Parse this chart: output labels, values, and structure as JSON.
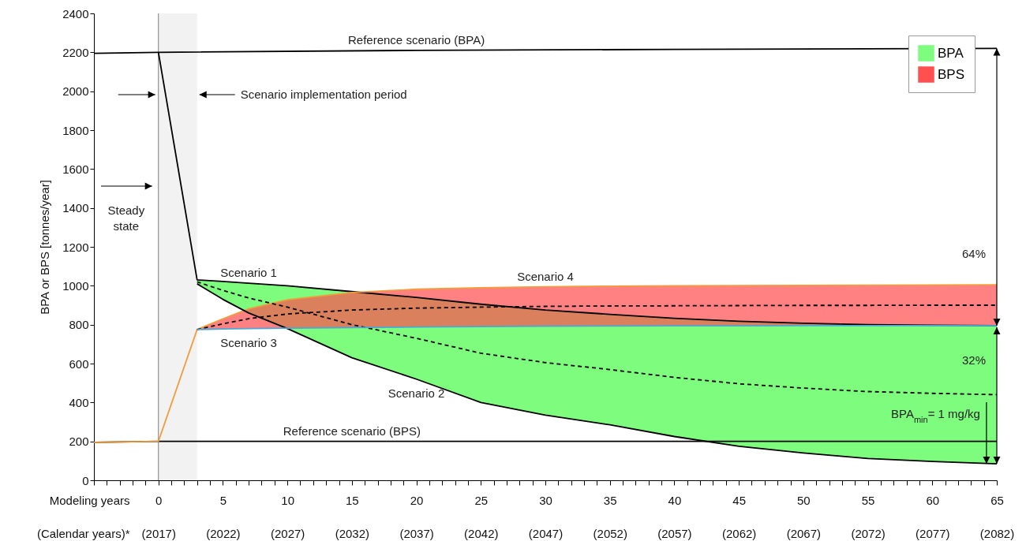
{
  "chart_data": {
    "type": "line",
    "ylabel": "BPA or BPS [tonnes/year]",
    "xlabel": "Modeling years",
    "x2label": "(Calendar years)*",
    "xlim": [
      -5,
      65
    ],
    "ylim": [
      0,
      2400
    ],
    "yticks": [
      0,
      200,
      400,
      600,
      800,
      1000,
      1200,
      1400,
      1600,
      1800,
      2000,
      2200,
      2400
    ],
    "xticks": [
      {
        "value": -5,
        "label": null
      },
      {
        "value": -4,
        "label": null
      },
      {
        "value": -3,
        "label": null
      },
      {
        "value": -2,
        "label": null
      },
      {
        "value": -1,
        "label": null
      },
      0,
      {
        "value": 1,
        "label": null
      },
      {
        "value": 2,
        "label": null
      },
      {
        "value": 3,
        "label": null
      },
      {
        "value": 4,
        "label": null
      },
      5,
      {
        "value": 6,
        "label": null
      },
      {
        "value": 7,
        "label": null
      },
      {
        "value": 8,
        "label": null
      },
      {
        "value": 9,
        "label": null
      },
      10,
      {
        "value": 11,
        "label": null
      },
      {
        "value": 12,
        "label": null
      },
      {
        "value": 13,
        "label": null
      },
      {
        "value": 14,
        "label": null
      },
      15,
      {
        "value": 16,
        "label": null
      },
      {
        "value": 17,
        "label": null
      },
      {
        "value": 18,
        "label": null
      },
      {
        "value": 19,
        "label": null
      },
      20,
      {
        "value": 21,
        "label": null
      },
      {
        "value": 22,
        "label": null
      },
      {
        "value": 23,
        "label": null
      },
      {
        "value": 24,
        "label": null
      },
      25,
      {
        "value": 26,
        "label": null
      },
      {
        "value": 27,
        "label": null
      },
      {
        "value": 28,
        "label": null
      },
      {
        "value": 29,
        "label": null
      },
      30,
      {
        "value": 31,
        "label": null
      },
      {
        "value": 32,
        "label": null
      },
      {
        "value": 33,
        "label": null
      },
      {
        "value": 34,
        "label": null
      },
      35,
      {
        "value": 36,
        "label": null
      },
      {
        "value": 37,
        "label": null
      },
      {
        "value": 38,
        "label": null
      },
      {
        "value": 39,
        "label": null
      },
      40,
      {
        "value": 41,
        "label": null
      },
      {
        "value": 42,
        "label": null
      },
      {
        "value": 43,
        "label": null
      },
      {
        "value": 44,
        "label": null
      },
      45,
      {
        "value": 46,
        "label": null
      },
      {
        "value": 47,
        "label": null
      },
      {
        "value": 48,
        "label": null
      },
      {
        "value": 49,
        "label": null
      },
      50,
      {
        "value": 51,
        "label": null
      },
      {
        "value": 52,
        "label": null
      },
      {
        "value": 53,
        "label": null
      },
      {
        "value": 54,
        "label": null
      },
      55,
      {
        "value": 56,
        "label": null
      },
      {
        "value": 57,
        "label": null
      },
      {
        "value": 58,
        "label": null
      },
      {
        "value": 59,
        "label": null
      },
      60,
      {
        "value": 61,
        "label": null
      },
      {
        "value": 62,
        "label": null
      },
      {
        "value": 63,
        "label": null
      },
      {
        "value": 64,
        "label": null
      },
      65
    ],
    "x2lim": [
      2012,
      2082
    ],
    "x2ticks": [
      {
        "value": 2017,
        "label": "(2017)"
      },
      {
        "value": 2022,
        "label": "(2022)"
      },
      {
        "value": 2027,
        "label": "(2027)"
      },
      {
        "value": 2032,
        "label": "(2032)"
      },
      {
        "value": 2037,
        "label": "(2037)"
      },
      {
        "value": 2042,
        "label": "(2042)"
      },
      {
        "value": 2047,
        "label": "(2047)"
      },
      {
        "value": 2052,
        "label": "(2052)"
      },
      {
        "value": 2057,
        "label": "(2057)"
      },
      {
        "value": 2062,
        "label": "(2062)"
      },
      {
        "value": 2067,
        "label": "(2067)"
      },
      {
        "value": 2072,
        "label": "(2072)"
      },
      {
        "value": 2077,
        "label": "(2077)"
      },
      {
        "value": 2082,
        "label": "(2082)"
      }
    ],
    "legend": "top right",
    "series": [
      {
        "type": "line",
        "color": "#000000",
        "x": [
          -5,
          0,
          20,
          40,
          65
        ],
        "values": [
          2195,
          2200,
          2210,
          2215,
          2220
        ]
      },
      {
        "type": "line",
        "color": "#000000",
        "x": [
          -5,
          0,
          65
        ],
        "values": [
          195,
          200,
          200
        ]
      },
      {
        "type": "line",
        "color": "#000000",
        "x": [
          0,
          3,
          5,
          7,
          10,
          15,
          20,
          25,
          30,
          35,
          40,
          45,
          50,
          55,
          60,
          65
        ],
        "values": [
          2200,
          1030,
          1022,
          1013,
          1000,
          970,
          940,
          905,
          875,
          853,
          833,
          817,
          807,
          800,
          797,
          795
        ]
      },
      {
        "type": "line",
        "color": "#f39c3c",
        "x": [
          -5,
          0,
          3,
          5,
          7,
          10,
          15,
          20,
          25,
          30,
          35,
          40,
          45,
          50,
          55,
          60,
          65
        ],
        "values": [
          195,
          200,
          775,
          830,
          881,
          928,
          965,
          982,
          990,
          995,
          998,
          1000,
          1001,
          1002,
          1003,
          1004,
          1005
        ]
      },
      {
        "type": "line",
        "color": "#000000",
        "line_style": "dashed",
        "x": [
          3,
          5,
          7,
          10,
          15,
          20,
          25,
          30,
          35,
          40,
          45,
          50,
          55,
          60,
          65
        ],
        "values": [
          1020,
          976,
          937,
          890,
          800,
          730,
          653,
          605,
          569,
          529,
          496,
          474,
          456,
          447,
          440
        ]
      },
      {
        "type": "line",
        "color": "#000000",
        "line_style": "dashed",
        "x": [
          3,
          5,
          7,
          10,
          15,
          20,
          25,
          30,
          35,
          40,
          45,
          50,
          55,
          60,
          65
        ],
        "values": [
          775,
          804,
          831,
          855,
          875,
          885,
          890,
          894,
          896,
          897,
          898,
          899,
          899,
          900,
          900
        ]
      },
      {
        "type": "line",
        "color": "#000000",
        "x": [
          3,
          5,
          7,
          10,
          15,
          20,
          25,
          30,
          35,
          40,
          45,
          50,
          55,
          60,
          65
        ],
        "values": [
          1010,
          930,
          860,
          780,
          630,
          520,
          400,
          335,
          285,
          225,
          175,
          140,
          112,
          97,
          85
        ]
      },
      {
        "name": "BPA",
        "type": "area",
        "color": "#7dfc7d",
        "x": [
          3,
          5,
          7,
          10,
          15,
          20,
          25,
          30,
          35,
          40,
          45,
          50,
          55,
          60,
          65
        ],
        "values": [
          1030,
          1022,
          1013,
          1000,
          970,
          940,
          905,
          875,
          853,
          833,
          817,
          807,
          800,
          797,
          795
        ]
      },
      {
        "type": "line",
        "color": "#4da6d6",
        "x": [
          3,
          5,
          7,
          10,
          15,
          20,
          25,
          30,
          35,
          40,
          45,
          50,
          55,
          60,
          65
        ],
        "values": [
          775,
          778,
          780,
          782,
          785,
          788,
          790,
          792,
          793,
          794,
          794,
          795,
          795,
          795,
          795
        ]
      },
      {
        "name": "BPS",
        "type": "area",
        "color": "#ff5050",
        "x": [
          3,
          5,
          7,
          10,
          15,
          20,
          25,
          30,
          35,
          40,
          45,
          50,
          55,
          60,
          65
        ],
        "values": [
          775,
          830,
          881,
          928,
          965,
          982,
          990,
          995,
          998,
          1000,
          1001,
          1002,
          1003,
          1004,
          1005
        ]
      }
    ],
    "bands": [
      {
        "axis": "x",
        "from": 0,
        "to": 3,
        "label": "Scenario implementation period",
        "color": "#f2f2f2"
      }
    ],
    "ref_lines": [
      {
        "axis": "x",
        "value": 0,
        "color": "#808080"
      }
    ],
    "annotations": [
      {
        "text": "Reference scenario (BPA)",
        "x": 20,
        "y": 2210
      },
      {
        "text": "Reference scenario (BPS)",
        "x": 15,
        "y": 200
      },
      {
        "text": "Scenario 1",
        "x": 7,
        "y": 1013
      },
      {
        "text": "Scenario 2",
        "x": 20,
        "y": 520
      },
      {
        "text": "Scenario 3",
        "x": 7,
        "y": 780
      },
      {
        "text": "Scenario 4",
        "x": 30,
        "y": 995
      },
      {
        "text": "BPA$_{min}$= 1 mg/kg",
        "x": 64.2,
        "y": 85
      },
      "Steady state",
      "64%",
      "32%"
    ]
  }
}
